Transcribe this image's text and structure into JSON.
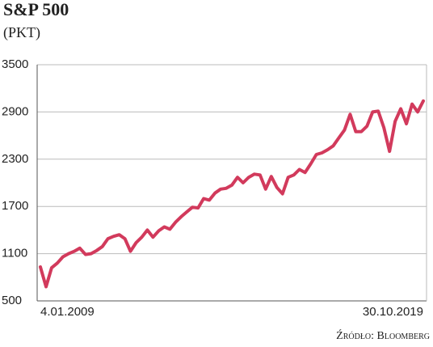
{
  "chart_data": {
    "type": "line",
    "title": "S&P 500",
    "subtitle": "(PKT)",
    "source": "Źródło: Bloomberg",
    "categories": [
      "4.01.2009",
      null,
      null,
      null,
      null,
      null,
      null,
      null,
      null,
      null,
      null,
      null,
      null,
      null,
      null,
      null,
      null,
      null,
      null,
      null,
      null,
      null,
      null,
      null,
      null,
      null,
      null,
      null,
      null,
      null,
      null,
      null,
      null,
      null,
      null,
      null,
      null,
      null,
      null,
      null,
      null,
      null,
      null,
      null,
      null,
      null,
      null,
      null,
      null,
      null,
      null,
      null,
      null,
      null,
      null,
      null,
      null,
      null,
      null,
      null,
      null,
      null,
      null,
      null,
      null,
      null,
      null,
      null,
      "30.10.2019"
    ],
    "values": [
      930,
      680,
      920,
      980,
      1060,
      1100,
      1130,
      1170,
      1090,
      1100,
      1140,
      1190,
      1290,
      1320,
      1340,
      1290,
      1130,
      1240,
      1310,
      1400,
      1310,
      1390,
      1440,
      1410,
      1500,
      1570,
      1630,
      1690,
      1680,
      1800,
      1780,
      1870,
      1920,
      1930,
      1970,
      2070,
      2000,
      2070,
      2110,
      2100,
      1920,
      2080,
      1940,
      1860,
      2070,
      2100,
      2170,
      2130,
      2240,
      2360,
      2380,
      2420,
      2470,
      2570,
      2670,
      2870,
      2650,
      2650,
      2720,
      2900,
      2910,
      2700,
      2400,
      2780,
      2940,
      2750,
      3000,
      2900,
      3040
    ],
    "color": "#d23a5c",
    "ylim": [
      500,
      3500
    ],
    "yticks": [
      500,
      1100,
      1700,
      2300,
      2900,
      3500
    ],
    "grid": true
  }
}
